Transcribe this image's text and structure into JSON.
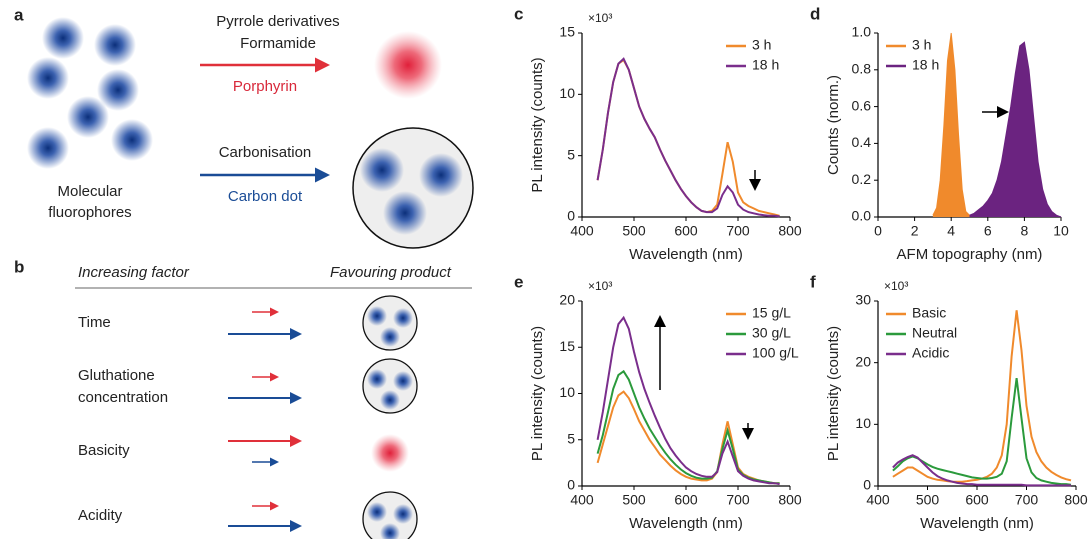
{
  "diagram": {
    "panel_a": {
      "label": "a",
      "reaction_1": {
        "reagents": [
          "Pyrrole derivatives",
          "Formamide"
        ],
        "product": "Porphyrin"
      },
      "reaction_2": {
        "reagent": "Carbonisation",
        "product": "Carbon dot"
      },
      "starting_material": [
        "Molecular",
        "fluorophores"
      ]
    },
    "panel_b": {
      "label": "b",
      "headers": [
        "Increasing factor",
        "Favouring product"
      ],
      "rows": [
        [
          "Time"
        ],
        [
          "Gluthatione",
          "concentration"
        ],
        [
          "Basicity"
        ],
        [
          "Acidity"
        ]
      ]
    }
  },
  "chart_data": [
    {
      "type": "line",
      "panel_label": "c",
      "y_multiplier": "×10³",
      "xlabel": "Wavelength (nm)",
      "ylabel": "PL intensity (counts)",
      "xlim": [
        400,
        800
      ],
      "xticks": [
        400,
        500,
        600,
        700,
        800
      ],
      "ylim": [
        0,
        15
      ],
      "yticks": [
        0,
        5,
        10,
        15
      ],
      "legend": "upper right",
      "x": [
        430,
        440,
        450,
        460,
        470,
        480,
        490,
        500,
        510,
        520,
        530,
        540,
        550,
        560,
        570,
        580,
        590,
        600,
        610,
        620,
        630,
        640,
        650,
        660,
        670,
        680,
        690,
        700,
        710,
        720,
        730,
        740,
        750,
        760,
        770,
        780
      ],
      "series": [
        {
          "name": "3 h",
          "color": "#f08a2c",
          "values": [
            3,
            5.5,
            8.5,
            11,
            12.5,
            12.8,
            12,
            10.5,
            9,
            8,
            7.2,
            6.5,
            5.5,
            4.6,
            3.8,
            3,
            2.3,
            1.7,
            1.2,
            0.8,
            0.5,
            0.4,
            0.5,
            1,
            3.5,
            6.1,
            4.5,
            2,
            1.2,
            0.9,
            0.7,
            0.5,
            0.4,
            0.3,
            0.2,
            0.1
          ]
        },
        {
          "name": "18 h",
          "color": "#7a2e8c",
          "values": [
            3,
            5.5,
            8.5,
            11,
            12.5,
            12.9,
            12,
            10.5,
            9,
            8,
            7.2,
            6.5,
            5.5,
            4.6,
            3.8,
            3,
            2.3,
            1.7,
            1.2,
            0.8,
            0.5,
            0.4,
            0.4,
            0.7,
            1.8,
            2.5,
            2,
            1,
            0.6,
            0.4,
            0.3,
            0.2,
            0.15,
            0.1,
            0.1,
            0.05
          ]
        }
      ]
    },
    {
      "type": "area",
      "panel_label": "d",
      "xlabel": "AFM topography (nm)",
      "ylabel": "Counts (norm.)",
      "xlim": [
        0,
        10
      ],
      "xticks": [
        0,
        2,
        4,
        6,
        8,
        10
      ],
      "ylim": [
        0,
        1
      ],
      "yticks": [
        {
          "value": 0,
          "label": "0.0"
        },
        {
          "value": 0.2,
          "label": "0.2"
        },
        {
          "value": 0.4,
          "label": "0.4"
        },
        {
          "value": 0.6,
          "label": "0.6"
        },
        {
          "value": 0.8,
          "label": "0.8"
        },
        {
          "value": 1,
          "label": "1.0"
        }
      ],
      "legend": "upper left",
      "series": [
        {
          "name": "3 h",
          "color": "#f08a2c",
          "x": [
            3,
            3.2,
            3.4,
            3.6,
            3.8,
            4,
            4.2,
            4.4,
            4.6,
            4.8,
            5
          ],
          "values": [
            0.01,
            0.05,
            0.2,
            0.5,
            0.85,
            1,
            0.8,
            0.45,
            0.15,
            0.03,
            0.01
          ]
        },
        {
          "name": "18 h",
          "color": "#6b2380",
          "x": [
            5,
            5.25,
            5.5,
            5.75,
            6,
            6.25,
            6.5,
            6.75,
            7,
            7.25,
            7.5,
            7.75,
            8,
            8.25,
            8.5,
            8.75,
            9,
            9.25,
            9.5,
            9.75,
            10
          ],
          "values": [
            0.01,
            0.02,
            0.04,
            0.06,
            0.09,
            0.13,
            0.2,
            0.3,
            0.45,
            0.6,
            0.78,
            0.93,
            0.95,
            0.8,
            0.55,
            0.3,
            0.15,
            0.07,
            0.03,
            0.01,
            0
          ]
        }
      ]
    },
    {
      "type": "line",
      "panel_label": "e",
      "y_multiplier": "×10³",
      "xlabel": "Wavelength (nm)",
      "ylabel": "PL intensity (counts)",
      "xlim": [
        400,
        800
      ],
      "xticks": [
        400,
        500,
        600,
        700,
        800
      ],
      "ylim": [
        0,
        20
      ],
      "yticks": [
        0,
        5,
        10,
        15,
        20
      ],
      "legend": "upper right",
      "x": [
        430,
        440,
        450,
        460,
        470,
        480,
        490,
        500,
        510,
        520,
        530,
        540,
        550,
        560,
        570,
        580,
        590,
        600,
        610,
        620,
        630,
        640,
        650,
        660,
        670,
        680,
        690,
        700,
        710,
        720,
        730,
        740,
        750,
        760,
        770,
        780
      ],
      "series": [
        {
          "name": "15 g/L",
          "color": "#f08a2c",
          "values": [
            2.5,
            4.5,
            6.5,
            8.5,
            9.8,
            10.2,
            9.5,
            8.3,
            7,
            6,
            5,
            4.2,
            3.4,
            2.8,
            2.2,
            1.7,
            1.3,
            1,
            0.8,
            0.7,
            0.6,
            0.6,
            0.8,
            1.5,
            4.5,
            7,
            4.5,
            2,
            1.3,
            1,
            0.8,
            0.6,
            0.5,
            0.4,
            0.3,
            0.3
          ]
        },
        {
          "name": "30 g/L",
          "color": "#2b9a3c",
          "values": [
            3.5,
            5.5,
            8,
            10.5,
            12,
            12.4,
            11.5,
            10,
            8.5,
            7.3,
            6.2,
            5.3,
            4.4,
            3.6,
            2.9,
            2.3,
            1.8,
            1.4,
            1.1,
            0.9,
            0.8,
            0.8,
            0.9,
            1.6,
            4,
            6,
            4,
            1.8,
            1.2,
            0.9,
            0.7,
            0.6,
            0.5,
            0.4,
            0.3,
            0.3
          ]
        },
        {
          "name": "100 g/L",
          "color": "#7a2e8c",
          "values": [
            5,
            8,
            11.5,
            15,
            17.5,
            18.2,
            17,
            14.5,
            12.3,
            10.5,
            9,
            7.6,
            6.3,
            5.1,
            4.1,
            3.3,
            2.6,
            2,
            1.6,
            1.3,
            1.1,
            1,
            1,
            1.5,
            3.5,
            4.8,
            3.2,
            1.6,
            1.1,
            0.8,
            0.6,
            0.5,
            0.4,
            0.3,
            0.3,
            0.2
          ]
        }
      ]
    },
    {
      "type": "line",
      "panel_label": "f",
      "y_multiplier": "×10³",
      "xlabel": "Wavelength (nm)",
      "ylabel": "PL intensity (counts)",
      "xlim": [
        400,
        800
      ],
      "xticks": [
        400,
        500,
        600,
        700,
        800
      ],
      "ylim": [
        0,
        30
      ],
      "yticks": [
        0,
        10,
        20,
        30
      ],
      "legend": "upper left",
      "x": [
        430,
        440,
        450,
        460,
        470,
        480,
        490,
        500,
        510,
        520,
        530,
        540,
        550,
        560,
        570,
        580,
        590,
        600,
        610,
        620,
        630,
        640,
        650,
        660,
        670,
        680,
        690,
        700,
        710,
        720,
        730,
        740,
        750,
        760,
        770,
        780,
        790
      ],
      "series": [
        {
          "name": "Basic",
          "color": "#f08a2c",
          "values": [
            1.5,
            2,
            2.5,
            3,
            3,
            2.5,
            2,
            1.5,
            1.2,
            1,
            0.9,
            0.8,
            0.7,
            0.7,
            0.7,
            0.8,
            0.9,
            1,
            1.2,
            1.5,
            2,
            3,
            5,
            10,
            21,
            28.5,
            22,
            13,
            8,
            5.5,
            4,
            3,
            2.3,
            1.8,
            1.4,
            1.1,
            0.9
          ]
        },
        {
          "name": "Neutral",
          "color": "#2b9a3c",
          "values": [
            2.5,
            3.2,
            4,
            4.5,
            4.8,
            4.5,
            4,
            3.5,
            3.1,
            2.8,
            2.6,
            2.4,
            2.2,
            2,
            1.8,
            1.6,
            1.4,
            1.3,
            1.2,
            1.2,
            1.3,
            1.5,
            2,
            4,
            11,
            17.5,
            11,
            4.5,
            2.2,
            1.3,
            0.9,
            0.7,
            0.5,
            0.4,
            0.3,
            0.3,
            0.2
          ]
        },
        {
          "name": "Acidic",
          "color": "#7a2e8c",
          "values": [
            3,
            3.8,
            4.3,
            4.7,
            5,
            4.6,
            3.8,
            3,
            2.2,
            1.6,
            1.2,
            0.9,
            0.7,
            0.5,
            0.4,
            0.3,
            0.3,
            0.2,
            0.2,
            0.2,
            0.2,
            0.2,
            0.2,
            0.2,
            0.2,
            0.2,
            0.2,
            0.1,
            0.1,
            0.1,
            0.1,
            0.1,
            0.1,
            0.1,
            0.1,
            0.1,
            0.1
          ]
        }
      ]
    }
  ]
}
